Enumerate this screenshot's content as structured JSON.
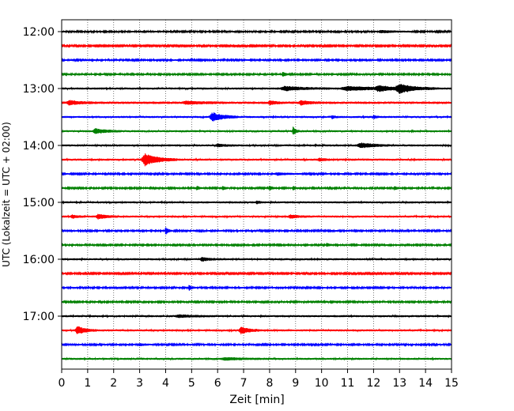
{
  "chart_data": {
    "type": "line",
    "title": "",
    "xlabel": "Zeit  [min]",
    "ylabel": "UTC (Lokalzeit = UTC + 02:00)",
    "xlim": [
      0,
      15
    ],
    "x_ticks": [
      0,
      1,
      2,
      3,
      4,
      5,
      6,
      7,
      8,
      9,
      10,
      11,
      12,
      13,
      14,
      15
    ],
    "x_tick_labels": [
      "0",
      "1",
      "2",
      "3",
      "4",
      "5",
      "6",
      "7",
      "8",
      "9",
      "10",
      "11",
      "12",
      "13",
      "14",
      "15"
    ],
    "y_tick_labels": [
      "12:00",
      "13:00",
      "14:00",
      "15:00",
      "16:00",
      "17:00"
    ],
    "y_tick_rows": [
      0,
      4,
      8,
      12,
      16,
      20
    ],
    "grid": "vertical dotted at each minute",
    "row_colors": [
      "#000000",
      "#ff0000",
      "#0000ff",
      "#008000"
    ],
    "rows": [
      {
        "start": "12:00",
        "color": "#000000",
        "noise": 2.0,
        "events": [
          {
            "t": 12.3,
            "amp": 3,
            "w": 0.5
          }
        ]
      },
      {
        "start": "12:15",
        "color": "#ff0000",
        "noise": 1.8,
        "events": []
      },
      {
        "start": "12:30",
        "color": "#0000ff",
        "noise": 2.0,
        "events": []
      },
      {
        "start": "12:45",
        "color": "#008000",
        "noise": 2.0,
        "events": [
          {
            "t": 8.5,
            "amp": 7,
            "w": 0.1
          }
        ]
      },
      {
        "start": "13:00",
        "color": "#000000",
        "noise": 2.5,
        "events": [
          {
            "t": 8.6,
            "amp": 5,
            "w": 0.7
          },
          {
            "t": 11.0,
            "amp": 5,
            "w": 1.0
          },
          {
            "t": 13.0,
            "amp": 10,
            "w": 0.6
          },
          {
            "t": 12.2,
            "amp": 6,
            "w": 0.5
          }
        ]
      },
      {
        "start": "13:15",
        "color": "#ff0000",
        "noise": 3.0,
        "events": [
          {
            "t": 0.3,
            "amp": 5,
            "w": 0.4
          },
          {
            "t": 4.8,
            "amp": 3,
            "w": 0.6
          },
          {
            "t": 8.0,
            "amp": 5,
            "w": 0.2
          },
          {
            "t": 9.2,
            "amp": 5,
            "w": 0.3
          }
        ]
      },
      {
        "start": "13:30",
        "color": "#0000ff",
        "noise": 2.5,
        "events": [
          {
            "t": 5.8,
            "amp": 11,
            "w": 0.4
          },
          {
            "t": 10.4,
            "amp": 4,
            "w": 0.1
          },
          {
            "t": 12.0,
            "amp": 4,
            "w": 0.1
          }
        ]
      },
      {
        "start": "13:45",
        "color": "#008000",
        "noise": 2.5,
        "events": [
          {
            "t": 1.3,
            "amp": 6,
            "w": 0.4
          },
          {
            "t": 8.9,
            "amp": 10,
            "w": 0.1
          }
        ]
      },
      {
        "start": "14:00",
        "color": "#000000",
        "noise": 2.5,
        "events": [
          {
            "t": 11.5,
            "amp": 6,
            "w": 0.5
          },
          {
            "t": 6.0,
            "amp": 3,
            "w": 0.3
          }
        ]
      },
      {
        "start": "14:15",
        "color": "#ff0000",
        "noise": 2.5,
        "events": [
          {
            "t": 3.2,
            "amp": 15,
            "w": 0.5
          },
          {
            "t": 9.9,
            "amp": 4,
            "w": 0.2
          }
        ]
      },
      {
        "start": "14:30",
        "color": "#0000ff",
        "noise": 2.0,
        "events": [
          {
            "t": 8.3,
            "amp": 3,
            "w": 0.4
          }
        ]
      },
      {
        "start": "14:45",
        "color": "#008000",
        "noise": 2.0,
        "events": [
          {
            "t": 5.2,
            "amp": 5,
            "w": 0.1
          },
          {
            "t": 6.2,
            "amp": 5,
            "w": 0.1
          },
          {
            "t": 8.0,
            "amp": 6,
            "w": 0.1
          },
          {
            "t": 8.9,
            "amp": 5,
            "w": 0.1
          },
          {
            "t": 12.8,
            "amp": 5,
            "w": 0.1
          },
          {
            "t": 15.0,
            "amp": 5,
            "w": 0.1
          }
        ]
      },
      {
        "start": "15:00",
        "color": "#000000",
        "noise": 2.5,
        "events": [
          {
            "t": 7.5,
            "amp": 4,
            "w": 0.1
          }
        ]
      },
      {
        "start": "15:15",
        "color": "#ff0000",
        "noise": 2.5,
        "events": [
          {
            "t": 0.4,
            "amp": 4,
            "w": 0.2
          },
          {
            "t": 1.4,
            "amp": 6,
            "w": 0.3
          },
          {
            "t": 8.8,
            "amp": 4,
            "w": 0.3
          }
        ]
      },
      {
        "start": "15:30",
        "color": "#0000ff",
        "noise": 2.0,
        "events": [
          {
            "t": 4.0,
            "amp": 10,
            "w": 0.1
          }
        ]
      },
      {
        "start": "15:45",
        "color": "#008000",
        "noise": 2.0,
        "events": [
          {
            "t": 10.2,
            "amp": 5,
            "w": 0.1
          }
        ]
      },
      {
        "start": "16:00",
        "color": "#000000",
        "noise": 2.5,
        "events": [
          {
            "t": 5.4,
            "amp": 4,
            "w": 0.3
          }
        ]
      },
      {
        "start": "16:15",
        "color": "#ff0000",
        "noise": 1.8,
        "events": []
      },
      {
        "start": "16:30",
        "color": "#0000ff",
        "noise": 2.0,
        "events": [
          {
            "t": 4.9,
            "amp": 7,
            "w": 0.1
          }
        ]
      },
      {
        "start": "16:45",
        "color": "#008000",
        "noise": 2.0,
        "events": [
          {
            "t": 2.9,
            "amp": 3,
            "w": 0.1
          }
        ]
      },
      {
        "start": "17:00",
        "color": "#000000",
        "noise": 2.5,
        "events": [
          {
            "t": 4.5,
            "amp": 3,
            "w": 0.6
          }
        ]
      },
      {
        "start": "17:15",
        "color": "#ff0000",
        "noise": 2.5,
        "events": [
          {
            "t": 0.6,
            "amp": 10,
            "w": 0.3
          },
          {
            "t": 6.9,
            "amp": 9,
            "w": 0.3
          }
        ]
      },
      {
        "start": "17:30",
        "color": "#0000ff",
        "noise": 2.0,
        "events": [
          {
            "t": 3.0,
            "amp": 3,
            "w": 0.2
          }
        ]
      },
      {
        "start": "17:45",
        "color": "#008000",
        "noise": 2.5,
        "events": [
          {
            "t": 6.3,
            "amp": 3,
            "w": 0.6
          }
        ]
      }
    ]
  }
}
